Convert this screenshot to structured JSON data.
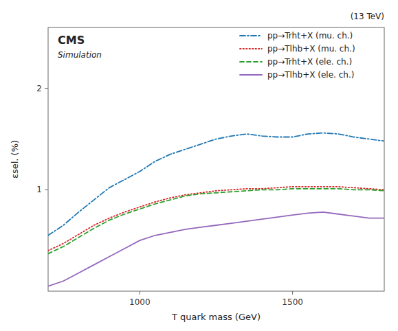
{
  "chart_data": {
    "type": "line",
    "title": "(13 TeV)",
    "annotations": [
      "CMS",
      "Simulation"
    ],
    "x_label": "T quark mass (GeV)",
    "y_label": "εsel. (%)",
    "xlim": [
      700,
      1800
    ],
    "ylim": [
      0,
      2.6
    ],
    "xticks": [
      1000,
      1500
    ],
    "yticks": [
      1,
      2
    ],
    "legend": "upper right",
    "x": [
      700,
      750,
      800,
      850,
      900,
      950,
      1000,
      1050,
      1100,
      1150,
      1200,
      1250,
      1300,
      1350,
      1400,
      1450,
      1500,
      1550,
      1600,
      1650,
      1700,
      1750,
      1800
    ],
    "series": [
      {
        "name": "pp→Trht+X (mu. ch.)",
        "line_style": "dashdot",
        "values": [
          0.55,
          0.65,
          0.78,
          0.9,
          1.02,
          1.1,
          1.18,
          1.28,
          1.35,
          1.4,
          1.45,
          1.5,
          1.53,
          1.55,
          1.53,
          1.52,
          1.52,
          1.55,
          1.56,
          1.55,
          1.52,
          1.5,
          1.48
        ]
      },
      {
        "name": "pp→Tlhb+X (mu. ch.)",
        "line_style": "dotted",
        "values": [
          0.4,
          0.47,
          0.56,
          0.65,
          0.72,
          0.78,
          0.83,
          0.88,
          0.92,
          0.95,
          0.97,
          0.99,
          1.0,
          1.01,
          1.01,
          1.02,
          1.03,
          1.03,
          1.03,
          1.03,
          1.02,
          1.01,
          1.0
        ]
      },
      {
        "name": "pp→Trht+X (ele. ch.)",
        "line_style": "dashed",
        "values": [
          0.37,
          0.44,
          0.53,
          0.62,
          0.7,
          0.76,
          0.81,
          0.86,
          0.9,
          0.94,
          0.96,
          0.97,
          0.98,
          0.99,
          1.0,
          1.0,
          1.01,
          1.01,
          1.01,
          1.01,
          1.0,
          1.0,
          0.99
        ]
      },
      {
        "name": "pp→Tlhb+X (ele. ch.)",
        "line_style": "solid",
        "values": [
          0.05,
          0.1,
          0.18,
          0.26,
          0.34,
          0.42,
          0.5,
          0.55,
          0.58,
          0.61,
          0.63,
          0.65,
          0.67,
          0.69,
          0.71,
          0.73,
          0.75,
          0.77,
          0.78,
          0.76,
          0.74,
          0.72,
          0.72
        ]
      }
    ]
  }
}
